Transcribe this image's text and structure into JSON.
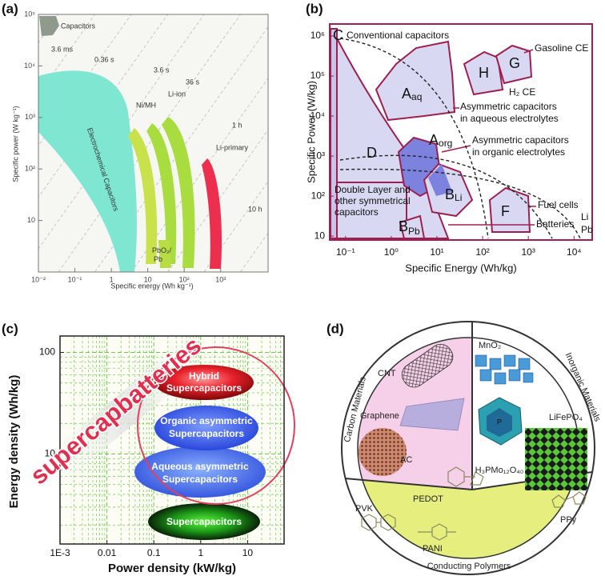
{
  "chart_data": [
    {
      "type": "area",
      "panel_label": "(a)",
      "xlabel": "Specific energy (Wh kg⁻¹)",
      "ylabel": "Specific power (W kg⁻¹)",
      "xscale": "log",
      "yscale": "log",
      "xlim": [
        0.01,
        20000
      ],
      "ylim": [
        1,
        100000
      ],
      "xticks": [
        {
          "value": 0.01,
          "label": "10⁻²"
        },
        {
          "value": 0.1,
          "label": "10⁻¹"
        },
        1,
        10,
        {
          "value": 100,
          "label": "10²"
        },
        {
          "value": 1000,
          "label": "10³"
        }
      ],
      "yticks": [
        10,
        {
          "value": 100,
          "label": "10²"
        },
        {
          "value": 1000,
          "label": "10³"
        },
        {
          "value": 10000,
          "label": "10⁴"
        },
        {
          "value": 100000,
          "label": "10⁵"
        }
      ],
      "grid": false,
      "regions": [
        {
          "name": "Capacitors",
          "color": "#8f9a8c"
        },
        {
          "name": "Electrochemical Capacitors",
          "color": "#7fe6d2"
        },
        {
          "name": "Ni/MH",
          "color": "#c9e24c"
        },
        {
          "name": "Li-ion",
          "color": "#a9dc3e"
        },
        {
          "name": "Li-primary",
          "color": "#ec2f4f"
        },
        {
          "name": [
            "PbO₂/",
            "Pb"
          ],
          "color": "#b8dc44"
        }
      ],
      "time_constants": [
        "3.6 ms",
        "0.36 s",
        "3.6 s",
        "36 s",
        "1 h",
        "10 h"
      ]
    },
    {
      "type": "area",
      "panel_label": "(b)",
      "xlabel": "Specific Energy (Wh/kg)",
      "ylabel": "Specific Power (W/kg)",
      "xscale": "log",
      "yscale": "log",
      "xlim": [
        0.045,
        25000
      ],
      "ylim": [
        8,
        2000000
      ],
      "xticks": [
        {
          "value": 0.1,
          "label": "10⁻¹"
        },
        {
          "value": 1,
          "label": "10⁰"
        },
        {
          "value": 10,
          "label": "10¹"
        },
        {
          "value": 100,
          "label": "10²"
        },
        {
          "value": 1000,
          "label": "10³"
        },
        {
          "value": 10000,
          "label": "10⁴"
        }
      ],
      "yticks": [
        10,
        {
          "value": 100,
          "label": "10²"
        },
        {
          "value": 1000,
          "label": "10³"
        },
        {
          "value": 10000,
          "label": "10⁴"
        },
        {
          "value": 100000,
          "label": "10⁵"
        },
        {
          "value": 1000000,
          "label": "10⁶"
        }
      ],
      "grid": false,
      "annotations": [
        "C",
        "Conventional capacitors",
        "H",
        "G",
        "Gasoline CE",
        "H₂ CE",
        {
          "main": "A",
          "sub": "aq"
        },
        [
          "Asymmetric capacitors",
          "in aqueous electrolytes"
        ],
        {
          "main": "A",
          "sub": "org"
        },
        [
          "Asymmetric capacitors",
          "in organic electrolytes"
        ],
        "D",
        [
          "Double Layer and",
          "other symmetrical",
          "capacitors"
        ],
        {
          "main": "B",
          "sub": "Li"
        },
        "F",
        "Fuel cells",
        {
          "main": "B",
          "sub": "Pb"
        },
        "Batteries",
        "Li",
        "Pb"
      ]
    },
    {
      "type": "area",
      "panel_label": "(c)",
      "xlabel": "Power density (kW/kg)",
      "ylabel": "Energy density (Wh/kg)",
      "xscale": "log",
      "yscale": "log",
      "xlim": [
        0.001,
        60
      ],
      "ylim": [
        1.3,
        145
      ],
      "xticks": [
        {
          "value": 0.001,
          "label": "1E-3"
        },
        0.01,
        0.1,
        1,
        10
      ],
      "yticks": [
        10,
        100
      ],
      "grid": true,
      "grid_color": "#6cc94a",
      "annotations": [
        "supercapbatteries",
        [
          "Hybrid",
          "Supercapacitors"
        ],
        [
          "Organic asymmetric",
          "Supercapacitors"
        ],
        [
          "Aqueous asymmetric",
          "Supercapacitors"
        ],
        "Supercapacitors"
      ]
    }
  ],
  "diagram": {
    "panel_label": "(d)",
    "sectors": [
      {
        "title": "Carbon Materials",
        "items": [
          "CNT",
          "Graphene",
          "AC"
        ]
      },
      {
        "title": "Inorganic Materials",
        "items": [
          "MnO₂",
          "H₃PMo₁₂O₄₀",
          "LiFePO₄"
        ]
      },
      {
        "title": "Conducting Polymers",
        "items": [
          "PEDOT",
          "PVK",
          "PPy",
          "PANI"
        ]
      }
    ]
  }
}
